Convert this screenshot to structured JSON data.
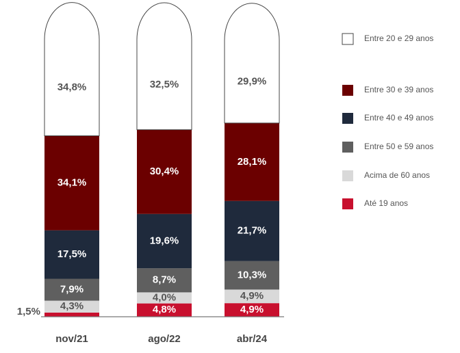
{
  "chart_data": {
    "type": "stacked_bar",
    "categories": [
      "nov/21",
      "ago/22",
      "abr/24"
    ],
    "ylim": [
      0,
      100
    ],
    "series": [
      {
        "name": "Até 19 anos",
        "color": "#c8102e",
        "values": [
          1.5,
          4.8,
          4.9
        ],
        "value_labels": [
          "1,5%",
          "4,8%",
          "4,9%"
        ]
      },
      {
        "name": "Acima de 60 anos",
        "color": "#d9d9d9",
        "values": [
          4.3,
          4.0,
          4.9
        ],
        "value_labels": [
          "4,3%",
          "4,0%",
          "4,9%"
        ]
      },
      {
        "name": "Entre 50 e 59 anos",
        "color": "#5f5f5f",
        "values": [
          7.9,
          8.7,
          10.3
        ],
        "value_labels": [
          "7,9%",
          "8,7%",
          "10,3%"
        ]
      },
      {
        "name": "Entre 40 e 49 anos",
        "color": "#1f2a3c",
        "values": [
          17.5,
          19.6,
          21.7
        ],
        "value_labels": [
          "17,5%",
          "19,6%",
          "21,7%"
        ]
      },
      {
        "name": "Entre 30 e 39 anos",
        "color": "#6b0000",
        "values": [
          34.1,
          30.4,
          28.1
        ],
        "value_labels": [
          "34,1%",
          "30,4%",
          "28,1%"
        ]
      },
      {
        "name": "Entre 20 e 29 anos",
        "color": "#ffffff",
        "values": [
          34.8,
          32.5,
          29.9
        ],
        "value_labels": [
          "34,8%",
          "32,5%",
          "29,9%"
        ]
      }
    ]
  }
}
